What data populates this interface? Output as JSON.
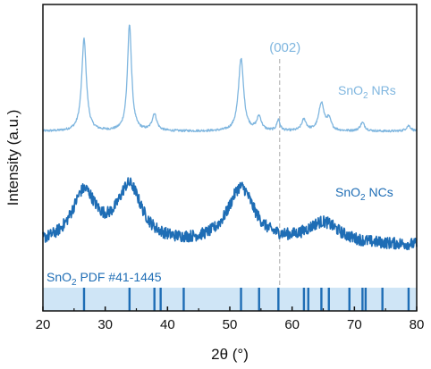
{
  "chart_data": {
    "type": "line",
    "xlabel": "2θ (°)",
    "ylabel": "Intensity (a.u.)",
    "xlim": [
      20,
      80
    ],
    "x_ticks": [
      20,
      30,
      40,
      50,
      60,
      70,
      80
    ],
    "y_ticks": [],
    "grid": false,
    "series": [
      {
        "name_parts": [
          "SnO",
          "2",
          " NRs"
        ],
        "color": "#7fb6df",
        "baseline": 0.52,
        "noise": 0.004,
        "peaks": [
          {
            "x": 26.6,
            "height": 0.33,
            "width": 0.45
          },
          {
            "x": 33.9,
            "height": 0.38,
            "width": 0.4
          },
          {
            "x": 37.9,
            "height": 0.06,
            "width": 0.45
          },
          {
            "x": 51.8,
            "height": 0.26,
            "width": 0.5
          },
          {
            "x": 54.7,
            "height": 0.05,
            "width": 0.45
          },
          {
            "x": 57.8,
            "height": 0.04,
            "width": 0.3
          },
          {
            "x": 61.9,
            "height": 0.04,
            "width": 0.45
          },
          {
            "x": 64.7,
            "height": 0.1,
            "width": 0.5
          },
          {
            "x": 65.9,
            "height": 0.04,
            "width": 0.45
          },
          {
            "x": 71.3,
            "height": 0.03,
            "width": 0.45
          },
          {
            "x": 78.7,
            "height": 0.02,
            "width": 0.45
          }
        ]
      },
      {
        "name_parts": [
          "SnO",
          "2",
          " NCs"
        ],
        "color": "#1e6db5",
        "baseline": 0.03,
        "noise": 0.022,
        "peaks": [
          {
            "x": 26.6,
            "height": 0.19,
            "width": 2.4
          },
          {
            "x": 33.9,
            "height": 0.21,
            "width": 2.4
          },
          {
            "x": 51.8,
            "height": 0.21,
            "width": 2.6
          },
          {
            "x": 65.0,
            "height": 0.08,
            "width": 3.2
          }
        ]
      }
    ],
    "annotations": [
      {
        "text": "(002)",
        "x": 58.0,
        "color": "#7fb6df"
      }
    ],
    "reference": {
      "label_parts": [
        "SnO",
        "2",
        " PDF #41-1445"
      ],
      "color": "#1e6db5",
      "band_color": "#cfe5f6",
      "lines": [
        26.6,
        33.9,
        37.9,
        38.9,
        42.6,
        51.8,
        54.7,
        57.8,
        61.9,
        62.6,
        64.7,
        65.9,
        69.2,
        71.3,
        71.8,
        74.5,
        78.7
      ]
    }
  }
}
